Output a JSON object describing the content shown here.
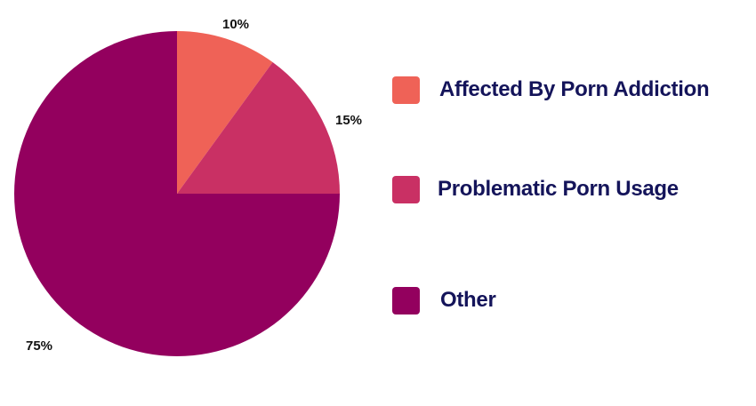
{
  "chart_data": {
    "type": "pie",
    "categories": [
      "Affected By Porn Addiction",
      "Problematic Porn Usage",
      "Other"
    ],
    "values": [
      10,
      15,
      75
    ],
    "labels": [
      "10%",
      "15%",
      "75%"
    ],
    "colors": [
      "#ef6257",
      "#c93064",
      "#93005e"
    ],
    "legend_position": "right"
  },
  "legend": {
    "items": [
      {
        "label": "Affected By Porn Addiction",
        "color": "#ef6257"
      },
      {
        "label": "Problematic Porn Usage",
        "color": "#c93064"
      },
      {
        "label": "Other",
        "color": "#93005e"
      }
    ],
    "text_color": "#14145a"
  }
}
